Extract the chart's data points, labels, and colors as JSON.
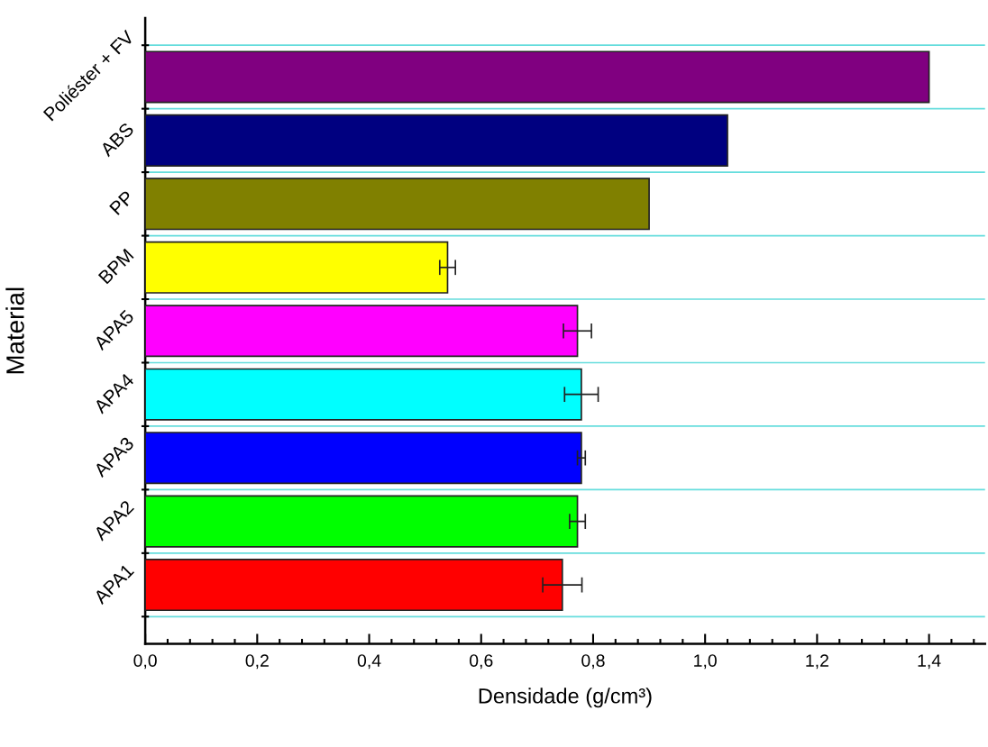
{
  "chart_data": {
    "type": "bar",
    "orientation": "horizontal",
    "xlabel": "Densidade (g/cm³)",
    "ylabel": "Material",
    "categories": [
      "Poliéster + FV",
      "ABS",
      "PP",
      "BPM",
      "APA5",
      "APA4",
      "APA3",
      "APA2",
      "APA1"
    ],
    "values": [
      1.4,
      1.04,
      0.9,
      0.54,
      0.772,
      0.779,
      0.779,
      0.772,
      0.745
    ],
    "errors": [
      null,
      null,
      null,
      0.014,
      0.025,
      0.03,
      0.007,
      0.014,
      0.035
    ],
    "colors": [
      "#800080",
      "#000080",
      "#808000",
      "#ffff00",
      "#ff00ff",
      "#00ffff",
      "#0000ff",
      "#00ff00",
      "#ff0000"
    ],
    "xlim": [
      0,
      1.5
    ],
    "xticks": [
      {
        "value": 0,
        "label": "0,0"
      },
      {
        "value": 0.2,
        "label": "0,2"
      },
      {
        "value": 0.4,
        "label": "0,4"
      },
      {
        "value": 0.6,
        "label": "0,6"
      },
      {
        "value": 0.8,
        "label": "0,8"
      },
      {
        "value": 1.0,
        "label": "1,0"
      },
      {
        "value": 1.2,
        "label": "1,2"
      },
      {
        "value": 1.4,
        "label": "1,4"
      }
    ],
    "grid": "y",
    "legend": false
  }
}
